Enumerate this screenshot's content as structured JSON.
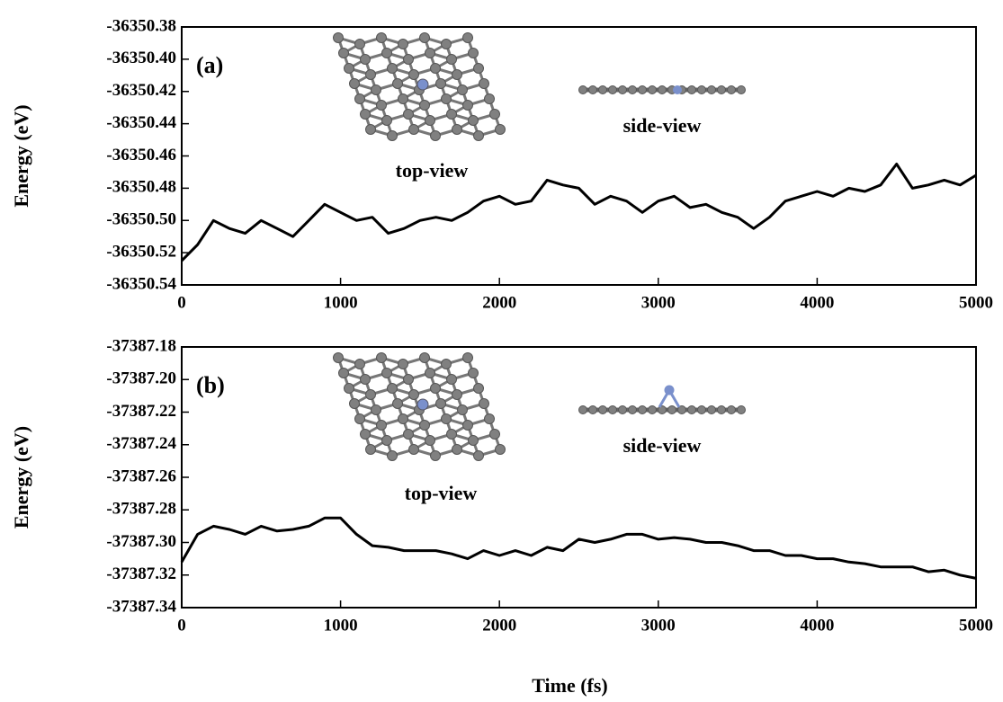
{
  "chart_data": [
    {
      "type": "line",
      "ylabel": "Energy (eV)",
      "annotations": [
        "(a)",
        "top-view",
        "side-view"
      ],
      "x": [
        0,
        100,
        200,
        300,
        400,
        500,
        600,
        700,
        800,
        900,
        1000,
        1100,
        1200,
        1300,
        1400,
        1500,
        1600,
        1700,
        1800,
        1900,
        2000,
        2100,
        2200,
        2300,
        2400,
        2500,
        2600,
        2700,
        2800,
        2900,
        3000,
        3100,
        3200,
        3300,
        3400,
        3500,
        3600,
        3700,
        3800,
        3900,
        4000,
        4100,
        4200,
        4300,
        4400,
        4500,
        4600,
        4700,
        4800,
        4900,
        5000
      ],
      "values": [
        -36350.525,
        -36350.515,
        -36350.5,
        -36350.505,
        -36350.508,
        -36350.5,
        -36350.505,
        -36350.51,
        -36350.5,
        -36350.49,
        -36350.495,
        -36350.5,
        -36350.498,
        -36350.508,
        -36350.505,
        -36350.5,
        -36350.498,
        -36350.5,
        -36350.495,
        -36350.488,
        -36350.485,
        -36350.49,
        -36350.488,
        -36350.475,
        -36350.478,
        -36350.48,
        -36350.49,
        -36350.485,
        -36350.488,
        -36350.495,
        -36350.488,
        -36350.485,
        -36350.492,
        -36350.49,
        -36350.495,
        -36350.498,
        -36350.505,
        -36350.498,
        -36350.488,
        -36350.485,
        -36350.482,
        -36350.485,
        -36350.48,
        -36350.482,
        -36350.478,
        -36350.465,
        -36350.48,
        -36350.478,
        -36350.475,
        -36350.478,
        -36350.472
      ],
      "color": "#000000",
      "xlim": [
        0,
        5000
      ],
      "xticks": [
        0,
        1000,
        2000,
        3000,
        4000,
        5000
      ],
      "ylim": [
        -36350.54,
        -36350.38
      ],
      "yticks": [
        -36350.38,
        {
          "value": -36350.4,
          "label": "-36350.40"
        },
        -36350.42,
        -36350.44,
        -36350.46,
        -36350.48,
        {
          "value": -36350.5,
          "label": "-36350.50"
        },
        -36350.52,
        -36350.54
      ]
    },
    {
      "type": "line",
      "ylabel": "Energy (eV)",
      "xlabel": "Time (fs)",
      "annotations": [
        "(b)",
        "top-view",
        "side-view"
      ],
      "x": [
        0,
        100,
        200,
        300,
        400,
        500,
        600,
        700,
        800,
        900,
        1000,
        1100,
        1200,
        1300,
        1400,
        1500,
        1600,
        1700,
        1800,
        1900,
        2000,
        2100,
        2200,
        2300,
        2400,
        2500,
        2600,
        2700,
        2800,
        2900,
        3000,
        3100,
        3200,
        3300,
        3400,
        3500,
        3600,
        3700,
        3800,
        3900,
        4000,
        4100,
        4200,
        4300,
        4400,
        4500,
        4600,
        4700,
        4800,
        4900,
        5000
      ],
      "values": [
        -37387.312,
        -37387.295,
        -37387.29,
        -37387.292,
        -37387.295,
        -37387.29,
        -37387.293,
        -37387.292,
        -37387.29,
        -37387.285,
        -37387.285,
        -37387.295,
        -37387.302,
        -37387.303,
        -37387.305,
        -37387.305,
        -37387.305,
        -37387.307,
        -37387.31,
        -37387.305,
        -37387.308,
        -37387.305,
        -37387.308,
        -37387.303,
        -37387.305,
        -37387.298,
        -37387.3,
        -37387.298,
        -37387.295,
        -37387.295,
        -37387.298,
        -37387.297,
        -37387.298,
        -37387.3,
        -37387.3,
        -37387.302,
        -37387.305,
        -37387.305,
        -37387.308,
        -37387.308,
        -37387.31,
        -37387.31,
        -37387.312,
        -37387.313,
        -37387.315,
        -37387.315,
        -37387.315,
        -37387.318,
        -37387.317,
        -37387.32,
        -37387.322
      ],
      "color": "#000000",
      "xlim": [
        0,
        5000
      ],
      "xticks": [
        0,
        1000,
        2000,
        3000,
        4000,
        5000
      ],
      "ylim": [
        -37387.34,
        -37387.18
      ],
      "yticks": [
        -37387.18,
        {
          "value": -37387.2,
          "label": "-37387.20"
        },
        -37387.22,
        -37387.24,
        -37387.26,
        -37387.28,
        {
          "value": -37387.3,
          "label": "-37387.30"
        },
        -37387.32,
        -37387.34
      ]
    }
  ]
}
